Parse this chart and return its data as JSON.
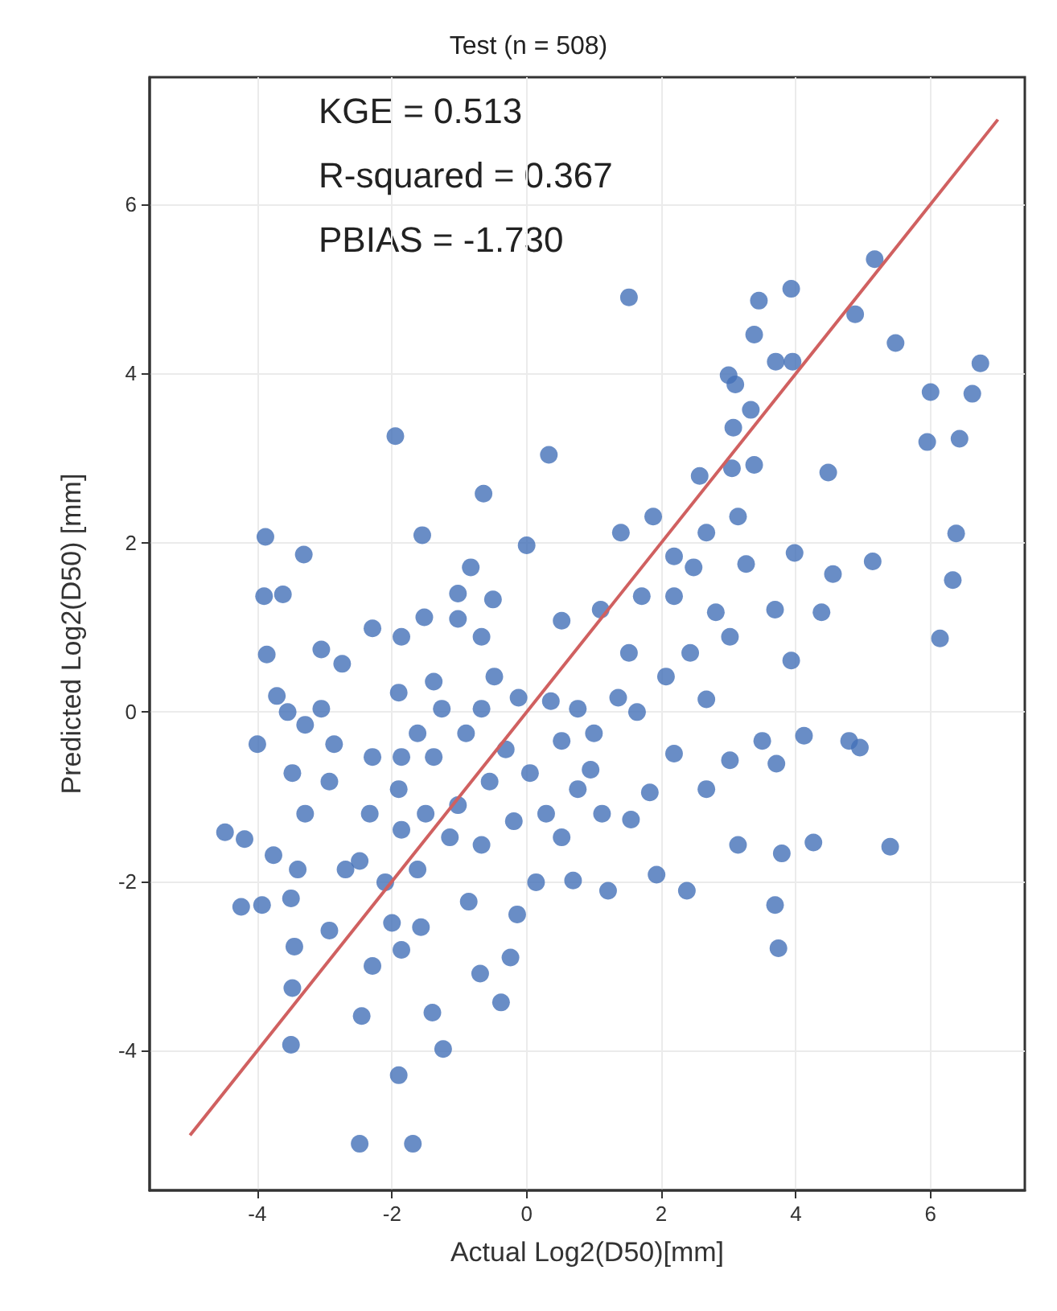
{
  "chart_data": {
    "type": "scatter",
    "title": "Test (n = 508)",
    "xlabel": "Actual Log2(D50)[mm]",
    "ylabel": "Predicted Log2(D50) [mm]",
    "annotations": [
      "KGE = 0.513",
      "R-squared = 0.367",
      "PBIAS = -1.730"
    ],
    "xlim": [
      -5.6,
      7.4
    ],
    "ylim": [
      -5.65,
      7.5
    ],
    "xticks": [
      -4,
      -2,
      0,
      2,
      4,
      6
    ],
    "yticks": [
      -4,
      -2,
      0,
      2,
      4,
      6
    ],
    "grid": true,
    "series": [
      {
        "marker": "circle",
        "color": "#4470b8",
        "x": [
          1.52,
          3.45,
          5.17,
          4.88,
          3.93,
          3.38,
          5.48,
          6.74,
          3.7,
          3.95,
          3.0,
          3.1,
          6.62,
          6.0,
          3.33,
          6.43,
          5.95,
          -1.95,
          0.33,
          3.07,
          2.57,
          3.05,
          -0.64,
          4.48,
          3.38,
          -3.88,
          -1.55,
          -3.31,
          6.38,
          1.88,
          1.4,
          5.14,
          6.33,
          6.14,
          -3.9,
          -3.62,
          -0.83,
          0,
          2.67,
          3.98,
          4.55,
          -3.05,
          -3.86,
          -2.74,
          -2.29,
          -1.52,
          -1.02,
          -0.67,
          0.52,
          1.1,
          2.19,
          2.81,
          3.69,
          4.38,
          3.93,
          -3.71,
          -3.55,
          -1.9,
          -1.38,
          -0.48,
          -0.12,
          0.36,
          1.36,
          2.07,
          2.67,
          1.64,
          3.5,
          4.12,
          4.79,
          4.95,
          3.71,
          3.02,
          2.19,
          0.95,
          1.0,
          0.52,
          -4.0,
          -3.48,
          -2.86,
          -3.29,
          -4.48,
          -4.19,
          -3.76,
          -3.4,
          -4.24,
          -3.93,
          -3.5,
          -3.45,
          -3.48,
          -3.5,
          -2.45,
          -2.48,
          -1.69,
          -1.9,
          -1.24,
          -1.4,
          -0.38,
          -0.69,
          -0.24,
          -0.14,
          0.14,
          0.69,
          1.21,
          1.93,
          2.38,
          3.14,
          3.79,
          4.26,
          5.4,
          3.69,
          3.74,
          1.55,
          2.67,
          1.83,
          0.76,
          0.29,
          -0.19,
          -0.67,
          -1.14,
          -1.62,
          -2.1,
          -2.0,
          -1.57,
          -0.86,
          -2.48,
          -2.33,
          -1.9,
          -1.38,
          -0.9,
          -0.55,
          -1.02,
          -1.5,
          -1.86,
          -2.29,
          -2.93,
          -2.69,
          -2.93,
          -2.29,
          -1.86,
          0.52,
          1.12,
          0.76,
          1.52,
          2.43,
          3.02,
          3.26,
          3.14,
          2.19,
          2.48,
          1.71,
          -0.5,
          -1.02,
          -1.86,
          -3.29,
          -3.05,
          -1.26,
          -1.62,
          -1.86,
          -0.67,
          -0.31,
          0.05
        ],
        "values": [
          4.9,
          4.86,
          5.35,
          4.7,
          5.0,
          4.46,
          4.36,
          4.12,
          4.14,
          4.14,
          3.98,
          3.87,
          3.76,
          3.78,
          3.57,
          3.23,
          3.19,
          3.26,
          3.04,
          3.36,
          2.79,
          2.88,
          2.58,
          2.83,
          2.92,
          2.07,
          2.09,
          1.86,
          2.11,
          2.31,
          2.12,
          1.78,
          1.56,
          0.87,
          1.37,
          1.39,
          1.71,
          1.97,
          2.12,
          1.88,
          1.63,
          0.74,
          0.68,
          0.57,
          0.99,
          1.12,
          1.1,
          0.89,
          1.08,
          1.21,
          1.37,
          1.18,
          1.21,
          1.18,
          0.61,
          0.19,
          0,
          0.23,
          0.36,
          0.42,
          0.17,
          0.13,
          0.17,
          0.42,
          0.15,
          0,
          -0.34,
          -0.28,
          -0.34,
          -0.42,
          -0.61,
          -0.57,
          -0.49,
          -0.68,
          -0.25,
          -0.34,
          -0.38,
          -0.72,
          -0.38,
          -1.2,
          -1.42,
          -1.5,
          -1.69,
          -1.86,
          -2.3,
          -2.28,
          -2.2,
          -2.77,
          -3.26,
          -3.93,
          -3.59,
          -5.1,
          -5.1,
          -4.29,
          -3.98,
          -3.55,
          -3.43,
          -3.09,
          -2.9,
          -2.39,
          -2.01,
          -1.99,
          -2.11,
          -1.92,
          -2.11,
          -1.57,
          -1.67,
          -1.54,
          -1.59,
          -2.28,
          -2.79,
          -1.27,
          -0.91,
          -0.95,
          -0.91,
          -1.2,
          -1.29,
          -1.57,
          -1.48,
          -1.86,
          -2.01,
          -2.49,
          -2.54,
          -2.24,
          -1.76,
          -1.2,
          -0.91,
          -0.53,
          -0.25,
          -0.82,
          -1.1,
          -1.2,
          -1.39,
          -0.53,
          -0.82,
          -1.86,
          -2.58,
          -3.0,
          -2.81,
          -1.48,
          -1.2,
          0.04,
          0.7,
          0.7,
          0.89,
          1.75,
          2.31,
          1.84,
          1.71,
          1.37,
          1.33,
          1.4,
          0.89,
          -0.15,
          0.04,
          0.04,
          -0.25,
          -0.53,
          0.04,
          -0.44,
          -0.72
        ]
      },
      {
        "type": "line",
        "color": "#d06060",
        "x": [
          -5,
          7
        ],
        "values": [
          -5,
          7
        ]
      }
    ]
  }
}
